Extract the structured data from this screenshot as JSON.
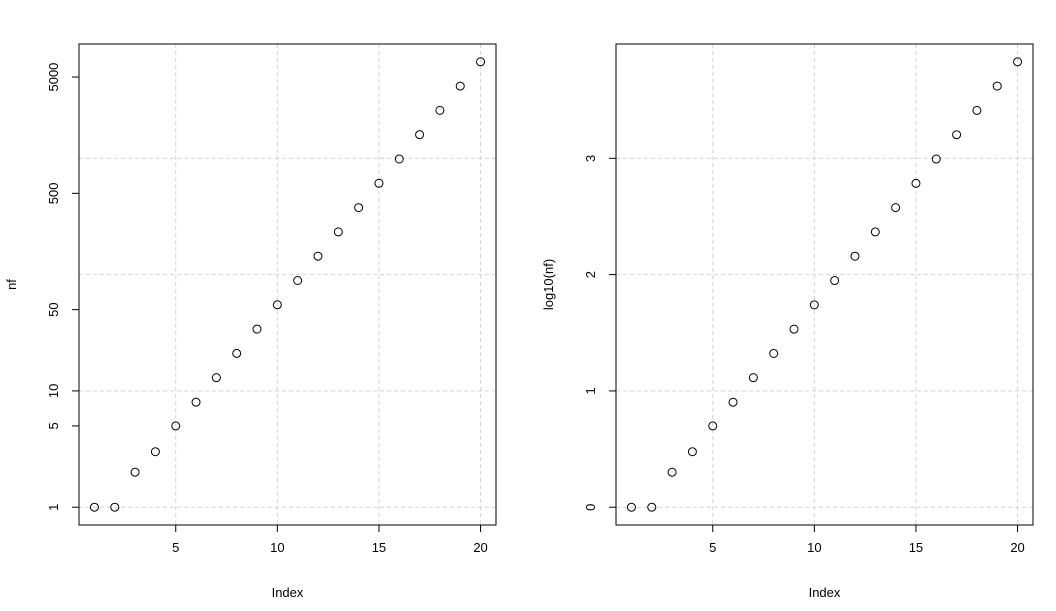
{
  "chart_data": [
    {
      "type": "scatter",
      "xlabel": "Index",
      "ylabel": "nf",
      "log_y": true,
      "color": "#000000",
      "grid": true,
      "x": [
        1,
        2,
        3,
        4,
        5,
        6,
        7,
        8,
        9,
        10,
        11,
        12,
        13,
        14,
        15,
        16,
        17,
        18,
        19,
        20
      ],
      "values": [
        1,
        1,
        2,
        3,
        5,
        8,
        13,
        21,
        34,
        55,
        89,
        144,
        233,
        377,
        610,
        987,
        1597,
        2584,
        4181,
        6765
      ],
      "xlim": [
        0.24,
        20.76
      ],
      "ylim": [
        0.703,
        9617
      ],
      "xticks": [
        5,
        10,
        15,
        20
      ],
      "yticks": [
        1,
        5,
        10,
        50,
        500,
        5000
      ],
      "xgrid": [
        5,
        10,
        15,
        20
      ],
      "ygrid": [
        1,
        10,
        100,
        1000
      ]
    },
    {
      "type": "scatter",
      "xlabel": "Index",
      "ylabel": "log10(nf)",
      "log_y": false,
      "color": "#000000",
      "grid": true,
      "x": [
        1,
        2,
        3,
        4,
        5,
        6,
        7,
        8,
        9,
        10,
        11,
        12,
        13,
        14,
        15,
        16,
        17,
        18,
        19,
        20
      ],
      "values": [
        0,
        0,
        0.301,
        0.477,
        0.699,
        0.903,
        1.114,
        1.322,
        1.531,
        1.74,
        1.949,
        2.158,
        2.367,
        2.576,
        2.785,
        2.994,
        3.203,
        3.412,
        3.621,
        3.83
      ],
      "xlim": [
        0.24,
        20.76
      ],
      "ylim": [
        -0.153,
        3.983
      ],
      "xticks": [
        5,
        10,
        15,
        20
      ],
      "yticks": [
        0,
        1,
        2,
        3
      ],
      "xgrid": [
        5,
        10,
        15,
        20
      ],
      "ygrid": [
        0,
        1,
        2,
        3
      ]
    }
  ]
}
